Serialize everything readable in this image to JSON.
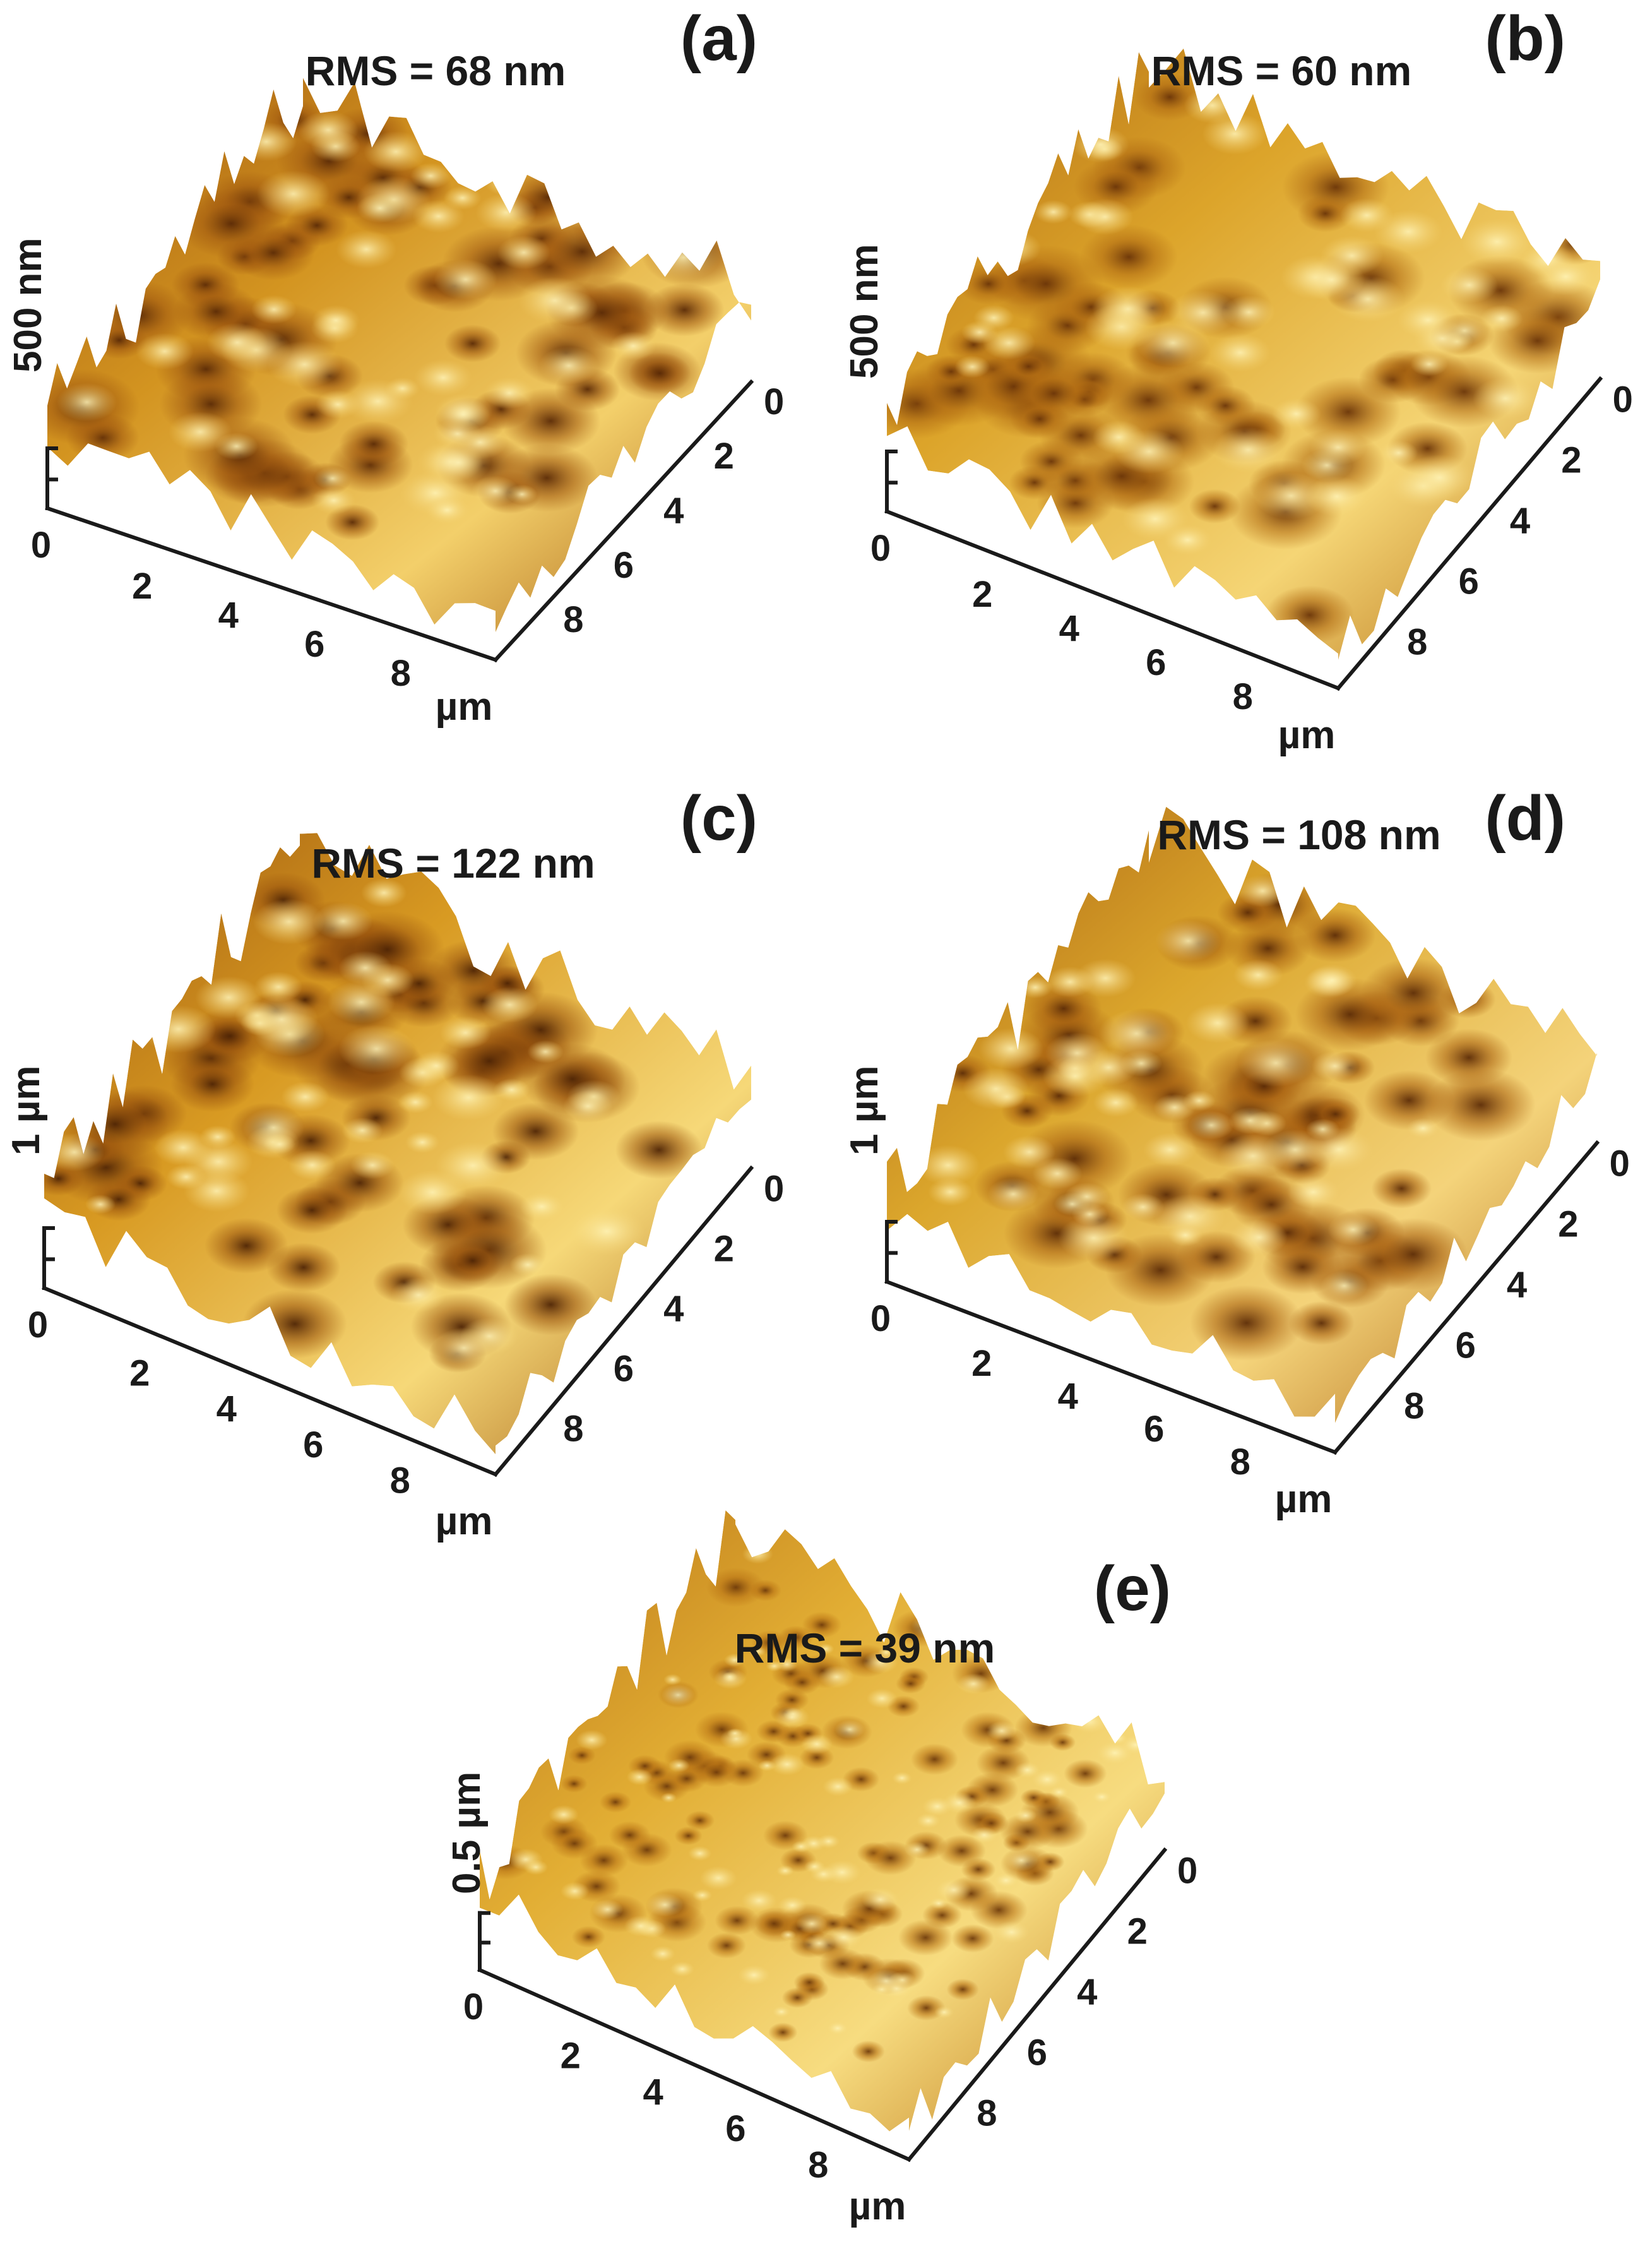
{
  "panels": [
    {
      "id": "a",
      "label": "(a)",
      "rms": "RMS = 68 nm",
      "z_label": "500 nm",
      "x_ticks": [
        "0",
        "2",
        "4",
        "6",
        "8"
      ],
      "y_ticks": [
        "0",
        "2",
        "4",
        "6",
        "8"
      ],
      "unit": "µm",
      "roughness_rms_nm": 68,
      "relief_colors": [
        "#5a2a06",
        "#a0580f",
        "#d39420",
        "#f3cf6a"
      ]
    },
    {
      "id": "b",
      "label": "(b)",
      "rms": "RMS = 60 nm",
      "z_label": "500 nm",
      "x_ticks": [
        "0",
        "2",
        "4",
        "6",
        "8"
      ],
      "y_ticks": [
        "0",
        "2",
        "4",
        "6",
        "8"
      ],
      "unit": "µm",
      "roughness_rms_nm": 60,
      "relief_colors": [
        "#6a3408",
        "#b06a12",
        "#dca42a",
        "#f5d575"
      ]
    },
    {
      "id": "c",
      "label": "(c)",
      "rms": "RMS = 122 nm",
      "z_label": "1 µm",
      "x_ticks": [
        "0",
        "2",
        "4",
        "6",
        "8"
      ],
      "y_ticks": [
        "0",
        "2",
        "4",
        "6",
        "8"
      ],
      "unit": "µm",
      "roughness_rms_nm": 122,
      "relief_colors": [
        "#4e2405",
        "#9c560e",
        "#d89a22",
        "#f6d878"
      ]
    },
    {
      "id": "d",
      "label": "(d)",
      "rms": "RMS = 108 nm",
      "z_label": "1 µm",
      "x_ticks": [
        "0",
        "2",
        "4",
        "6",
        "8"
      ],
      "y_ticks": [
        "0",
        "2",
        "4",
        "6",
        "8"
      ],
      "unit": "µm",
      "roughness_rms_nm": 108,
      "relief_colors": [
        "#5c2c07",
        "#a86010",
        "#dba62c",
        "#f4d37a"
      ]
    },
    {
      "id": "e",
      "label": "(e)",
      "rms": "RMS = 39 nm",
      "z_label": "0.5 µm",
      "x_ticks": [
        "0",
        "2",
        "4",
        "6",
        "8"
      ],
      "y_ticks": [
        "0",
        "2",
        "4",
        "6",
        "8"
      ],
      "unit": "µm",
      "roughness_rms_nm": 39,
      "relief_colors": [
        "#6e3a0a",
        "#b87214",
        "#e2ae34",
        "#f7dc80"
      ]
    }
  ]
}
